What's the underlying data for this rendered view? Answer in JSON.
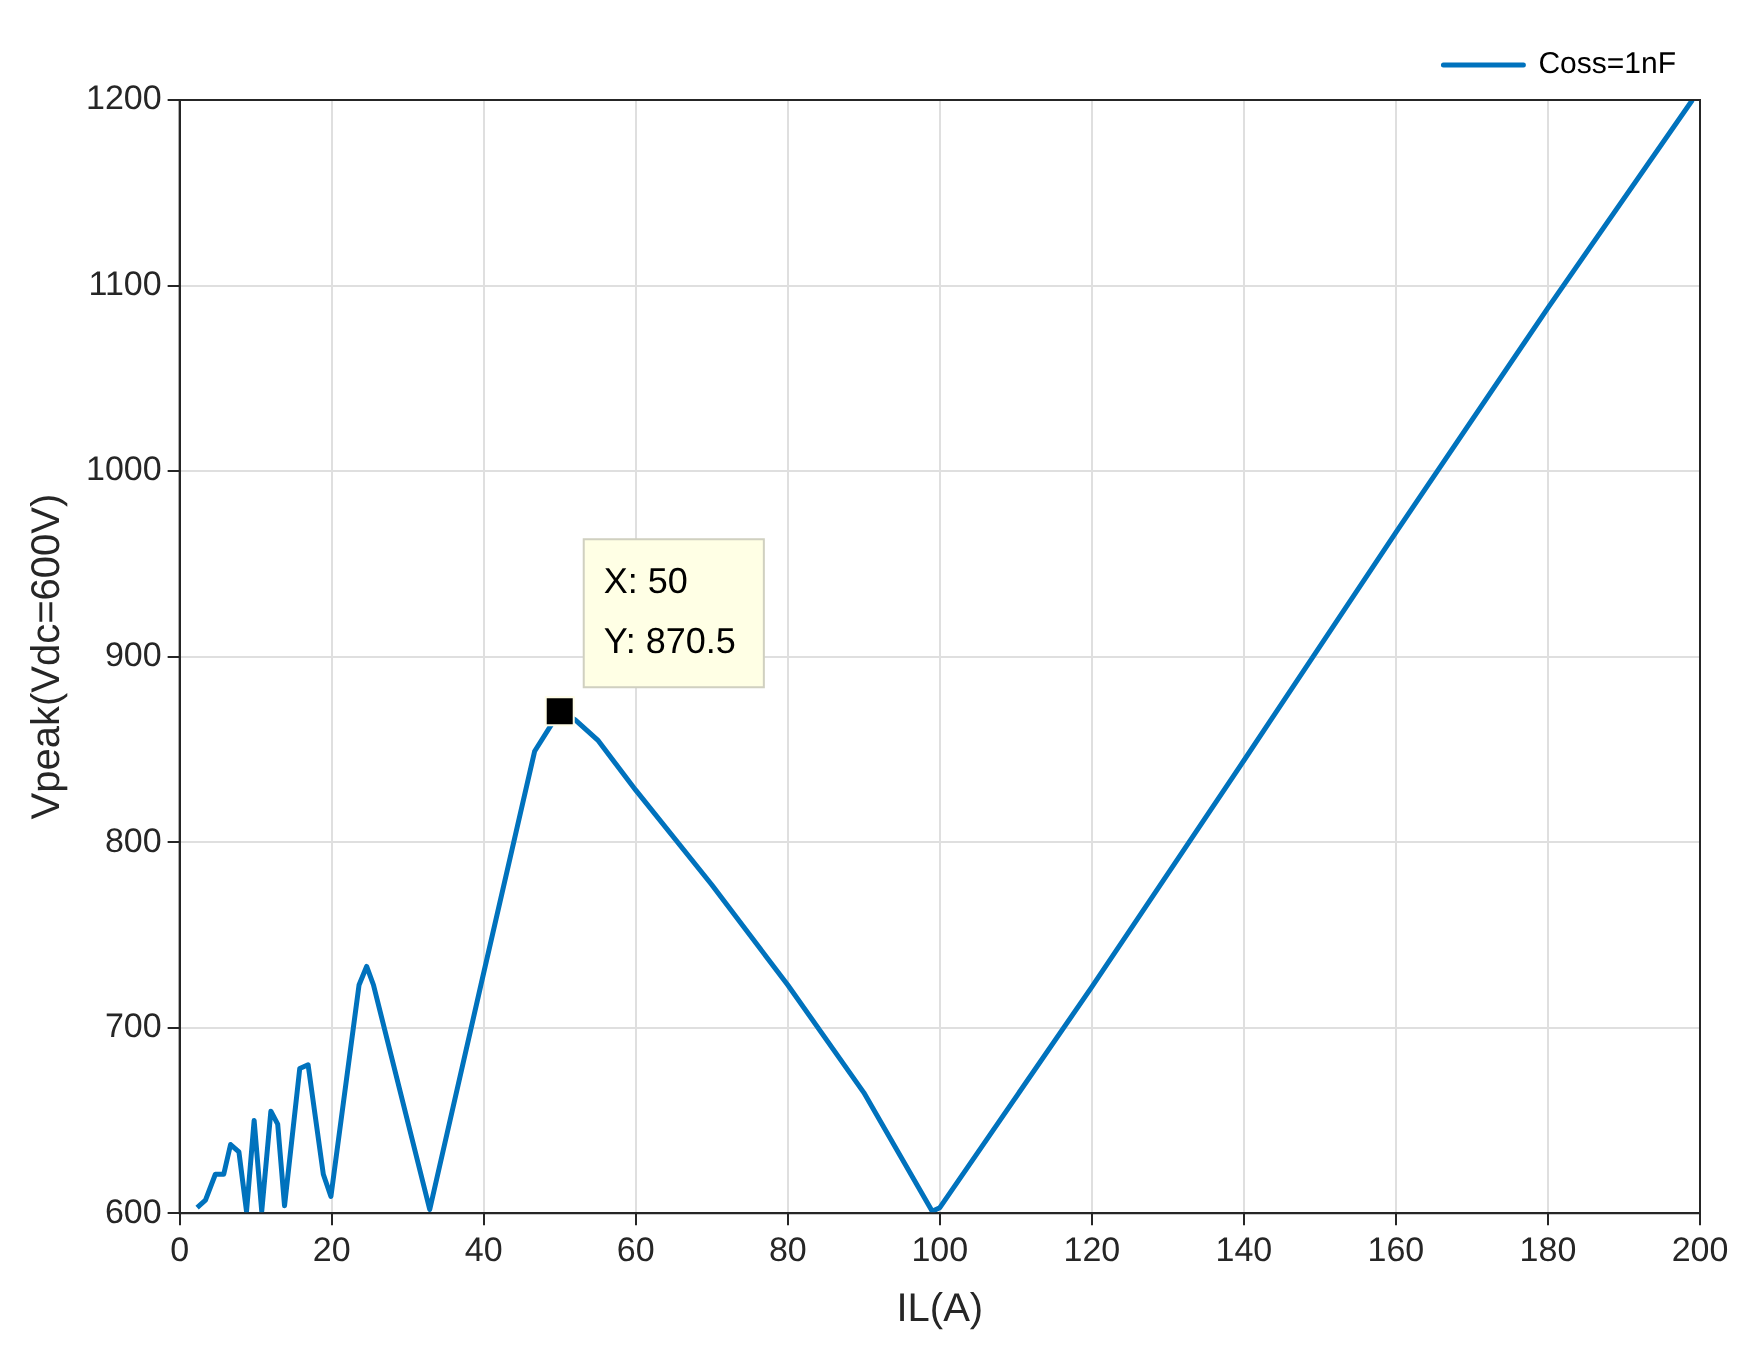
{
  "chart_data": {
    "type": "line",
    "xlabel": "IL(A)",
    "ylabel": "Vpeak(Vdc=600V)",
    "xlim": [
      0,
      200
    ],
    "ylim": [
      600,
      1200
    ],
    "xticks": [
      0,
      20,
      40,
      60,
      80,
      100,
      120,
      140,
      160,
      180,
      200
    ],
    "yticks": [
      600,
      700,
      800,
      900,
      1000,
      1100,
      1200
    ],
    "grid": true,
    "legend": "top right",
    "marker": "none",
    "line_style": "solid",
    "annotations": [
      {
        "text": "X: 50\nY: 870.5",
        "x": 50,
        "y": 870.5
      }
    ],
    "series": [
      {
        "name": "Coss=1nF",
        "color": "#0072bd",
        "x": [
          2.3,
          3.4,
          4.7,
          5.8,
          6.7,
          7.8,
          8.8,
          9.8,
          10.8,
          12,
          12.9,
          13.8,
          15.8,
          16.9,
          18.9,
          19.9,
          23.6,
          24.6,
          25.5,
          32.9,
          39.8,
          46.7,
          50,
          52,
          55,
          60,
          70,
          80,
          90,
          99,
          100,
          120,
          140,
          160,
          180,
          199
        ],
        "values": [
          603,
          607,
          621,
          621,
          637,
          633,
          601,
          650,
          601,
          655,
          648,
          604,
          678,
          680,
          621,
          609,
          723,
          733,
          723,
          602,
          726,
          849,
          870.5,
          866,
          855,
          828,
          777,
          723,
          665,
          601,
          603,
          722,
          844,
          967,
          1088,
          1200
        ]
      }
    ]
  }
}
